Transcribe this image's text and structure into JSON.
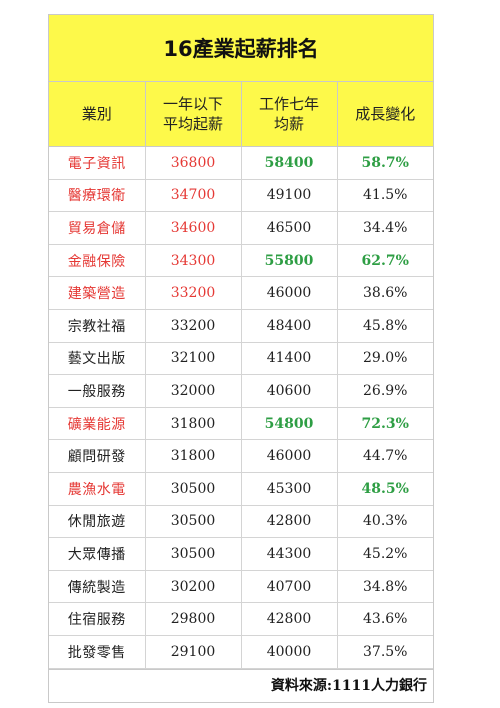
{
  "title": "16產業起薪排名",
  "headers": {
    "industry": "業別",
    "starting_salary": "一年以下\n平均起薪",
    "seven_year_salary": "工作七年\n均薪",
    "growth": "成長變化"
  },
  "highlight_colors": {
    "red": "#e53935",
    "green": "#2e9e44",
    "header_bg": "#fdf94a"
  },
  "rows": [
    {
      "industry": "電子資訊",
      "start": "36800",
      "seven": "58400",
      "growth": "58.7%",
      "industry_red": true,
      "start_red": true,
      "seven_green": true,
      "growth_green": true
    },
    {
      "industry": "醫療環衛",
      "start": "34700",
      "seven": "49100",
      "growth": "41.5%",
      "industry_red": true,
      "start_red": true,
      "seven_green": false,
      "growth_green": false
    },
    {
      "industry": "貿易倉儲",
      "start": "34600",
      "seven": "46500",
      "growth": "34.4%",
      "industry_red": true,
      "start_red": true,
      "seven_green": false,
      "growth_green": false
    },
    {
      "industry": "金融保險",
      "start": "34300",
      "seven": "55800",
      "growth": "62.7%",
      "industry_red": true,
      "start_red": true,
      "seven_green": true,
      "growth_green": true
    },
    {
      "industry": "建築營造",
      "start": "33200",
      "seven": "46000",
      "growth": "38.6%",
      "industry_red": true,
      "start_red": true,
      "seven_green": false,
      "growth_green": false
    },
    {
      "industry": "宗教社福",
      "start": "33200",
      "seven": "48400",
      "growth": "45.8%",
      "industry_red": false,
      "start_red": false,
      "seven_green": false,
      "growth_green": false
    },
    {
      "industry": "藝文出版",
      "start": "32100",
      "seven": "41400",
      "growth": "29.0%",
      "industry_red": false,
      "start_red": false,
      "seven_green": false,
      "growth_green": false
    },
    {
      "industry": "一般服務",
      "start": "32000",
      "seven": "40600",
      "growth": "26.9%",
      "industry_red": false,
      "start_red": false,
      "seven_green": false,
      "growth_green": false
    },
    {
      "industry": "礦業能源",
      "start": "31800",
      "seven": "54800",
      "growth": "72.3%",
      "industry_red": true,
      "start_red": false,
      "seven_green": true,
      "growth_green": true
    },
    {
      "industry": "顧問研發",
      "start": "31800",
      "seven": "46000",
      "growth": "44.7%",
      "industry_red": false,
      "start_red": false,
      "seven_green": false,
      "growth_green": false
    },
    {
      "industry": "農漁水電",
      "start": "30500",
      "seven": "45300",
      "growth": "48.5%",
      "industry_red": true,
      "start_red": false,
      "seven_green": false,
      "growth_green": true
    },
    {
      "industry": "休閒旅遊",
      "start": "30500",
      "seven": "42800",
      "growth": "40.3%",
      "industry_red": false,
      "start_red": false,
      "seven_green": false,
      "growth_green": false
    },
    {
      "industry": "大眾傳播",
      "start": "30500",
      "seven": "44300",
      "growth": "45.2%",
      "industry_red": false,
      "start_red": false,
      "seven_green": false,
      "growth_green": false
    },
    {
      "industry": "傳統製造",
      "start": "30200",
      "seven": "40700",
      "growth": "34.8%",
      "industry_red": false,
      "start_red": false,
      "seven_green": false,
      "growth_green": false
    },
    {
      "industry": "住宿服務",
      "start": "29800",
      "seven": "42800",
      "growth": "43.6%",
      "industry_red": false,
      "start_red": false,
      "seven_green": false,
      "growth_green": false
    },
    {
      "industry": "批發零售",
      "start": "29100",
      "seven": "40000",
      "growth": "37.5%",
      "industry_red": false,
      "start_red": false,
      "seven_green": false,
      "growth_green": false
    }
  ],
  "source": "資料來源:1111人力銀行"
}
